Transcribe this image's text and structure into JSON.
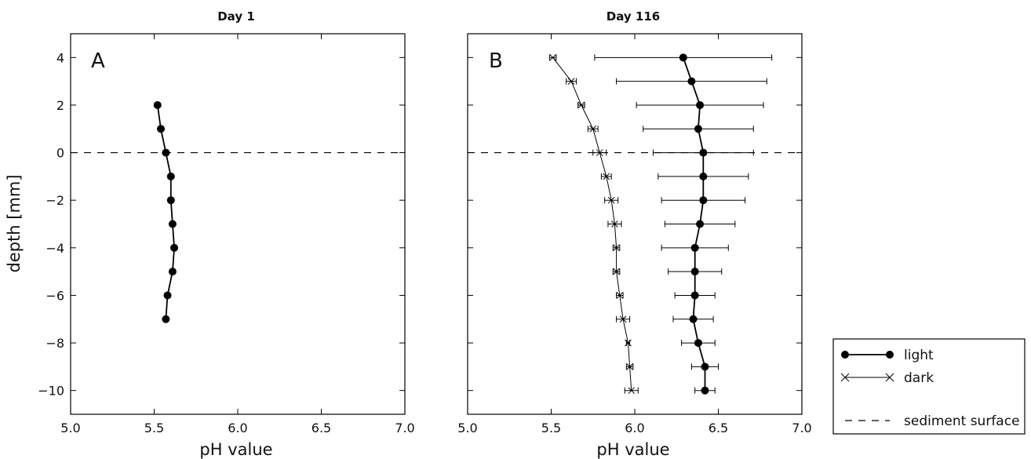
{
  "chart_data": [
    {
      "type": "line",
      "title": "Day 1",
      "panel_label": "A",
      "xlabel": "pH value",
      "ylabel": "depth [mm]",
      "xlim": [
        5.0,
        7.0
      ],
      "ylim": [
        -11,
        5
      ],
      "xticks": [
        "5.0",
        "5.5",
        "6.0",
        "6.5",
        "7.0"
      ],
      "yticks": [
        "4",
        "2",
        "0",
        "−2",
        "−4",
        "−6",
        "−8",
        "−10"
      ],
      "series": [
        {
          "name": "light",
          "depth": [
            2,
            1,
            0,
            -1,
            -2,
            -3,
            -4,
            -5,
            -6,
            -7
          ],
          "ph": [
            5.52,
            5.54,
            5.57,
            5.6,
            5.6,
            5.61,
            5.62,
            5.61,
            5.58,
            5.57
          ]
        }
      ],
      "reference_line": {
        "name": "sediment surface",
        "depth": 0
      }
    },
    {
      "type": "line",
      "title": "Day 116",
      "panel_label": "B",
      "xlabel": "pH value",
      "xlim": [
        5.0,
        7.0
      ],
      "ylim": [
        -11,
        5
      ],
      "xticks": [
        "5.0",
        "5.5",
        "6.0",
        "6.5",
        "7.0"
      ],
      "series": [
        {
          "name": "light",
          "depth": [
            4,
            3,
            2,
            1,
            0,
            -1,
            -2,
            -3,
            -4,
            -5,
            -6,
            -7,
            -8,
            -9,
            -10
          ],
          "ph": [
            6.29,
            6.34,
            6.39,
            6.38,
            6.41,
            6.41,
            6.41,
            6.39,
            6.36,
            6.36,
            6.36,
            6.35,
            6.38,
            6.42,
            6.42
          ],
          "err": [
            0.53,
            0.45,
            0.38,
            0.33,
            0.3,
            0.27,
            0.25,
            0.21,
            0.2,
            0.16,
            0.12,
            0.12,
            0.1,
            0.08,
            0.06
          ]
        },
        {
          "name": "dark",
          "depth": [
            4,
            3,
            2,
            1,
            0,
            -1,
            -2,
            -3,
            -4,
            -5,
            -6,
            -7,
            -8,
            -9,
            -10
          ],
          "ph": [
            5.51,
            5.62,
            5.68,
            5.75,
            5.79,
            5.83,
            5.86,
            5.88,
            5.89,
            5.89,
            5.91,
            5.93,
            5.96,
            5.97,
            5.98
          ],
          "err": [
            0.02,
            0.03,
            0.02,
            0.03,
            0.04,
            0.03,
            0.04,
            0.04,
            0.02,
            0.02,
            0.02,
            0.04,
            0.01,
            0.02,
            0.04
          ]
        }
      ],
      "reference_line": {
        "name": "sediment surface",
        "depth": 0
      }
    }
  ],
  "legend": {
    "position": "right",
    "entries": [
      {
        "label": "light",
        "marker": "circle",
        "line": "solid"
      },
      {
        "label": "dark",
        "marker": "x",
        "line": "solid"
      },
      {
        "label": "sediment surface",
        "marker": "none",
        "line": "dashed"
      }
    ]
  }
}
